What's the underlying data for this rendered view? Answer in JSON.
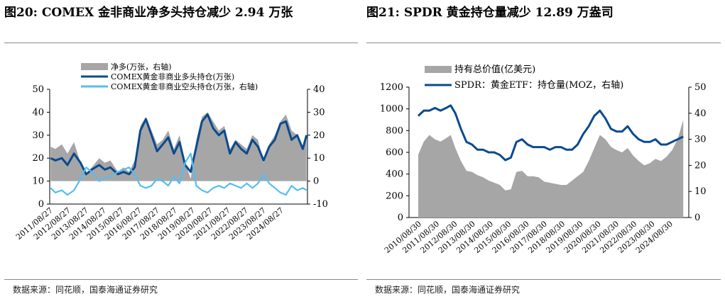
{
  "left": {
    "figure_title": "图20:  COMEX 金非商业净多头持仓减少 2.94 万张",
    "source": "数据来源：同花顺，国泰海通证券研究"
  },
  "right": {
    "figure_title": "图21:  SPDR 黄金持仓量减少 12.89 万盎司",
    "source": "数据来源：同花顺，国泰海通证券研究"
  },
  "chart_data": [
    {
      "type": "line",
      "title": "图20:  COMEX 金非商业净多头持仓减少 2.94 万张",
      "categories": [
        "2011/08/27",
        "2012/08/27",
        "2013/08/27",
        "2014/08/27",
        "2015/08/27",
        "2016/08/27",
        "2017/08/27",
        "2018/08/27",
        "2019/08/27",
        "2020/08/27",
        "2021/08/27",
        "2022/08/27",
        "2023/08/27",
        "2024/08/27"
      ],
      "ylim": [
        0,
        50
      ],
      "y2lim": [
        -10,
        40
      ],
      "yticks": [
        0,
        10,
        20,
        30,
        40,
        50
      ],
      "y2ticks": [
        -10,
        0,
        10,
        20,
        30,
        40
      ],
      "legend_position": "top",
      "x": [
        2011.4,
        2011.65,
        2012.0,
        2012.3,
        2012.65,
        2013.0,
        2013.3,
        2013.6,
        2014.0,
        2014.3,
        2014.6,
        2015.0,
        2015.3,
        2015.6,
        2015.9,
        2016.2,
        2016.5,
        2016.8,
        2017.1,
        2017.4,
        2017.7,
        2018.0,
        2018.3,
        2018.6,
        2018.9,
        2019.2,
        2019.5,
        2019.8,
        2020.1,
        2020.4,
        2020.7,
        2021.0,
        2021.3,
        2021.6,
        2021.9,
        2022.2,
        2022.5,
        2022.8,
        2023.1,
        2023.4,
        2023.7,
        2024.0,
        2024.3,
        2024.6,
        2024.9,
        2025.1
      ],
      "series": [
        {
          "name": "净多(万张，右轴)",
          "style": "area",
          "axis": "right",
          "color": "#a6a6a6",
          "values": [
            15,
            14,
            16,
            12,
            17,
            8,
            3,
            6,
            10,
            8,
            9,
            4,
            6,
            4,
            9,
            24,
            28,
            22,
            16,
            18,
            22,
            14,
            20,
            8,
            1,
            18,
            28,
            30,
            26,
            22,
            24,
            14,
            18,
            16,
            14,
            20,
            18,
            8,
            16,
            20,
            26,
            29,
            22,
            20,
            14,
            20
          ]
        },
        {
          "name": "COMEX黄金非商业多头持仓(万张)",
          "style": "line",
          "axis": "left",
          "color": "#0a4a8f",
          "values": [
            20,
            19,
            20,
            17,
            22,
            18,
            13,
            15,
            17,
            15,
            16,
            13,
            14,
            13,
            16,
            32,
            37,
            30,
            23,
            26,
            29,
            22,
            27,
            17,
            14,
            25,
            36,
            39,
            33,
            30,
            32,
            22,
            27,
            24,
            22,
            28,
            25,
            19,
            25,
            28,
            35,
            36,
            28,
            30,
            24,
            30
          ]
        },
        {
          "name": "COMEX黄金非商业空头持仓(万张，右轴)",
          "style": "line",
          "axis": "right",
          "color": "#56bdf0",
          "values": [
            -3,
            -5,
            -4,
            -6,
            -4,
            1,
            6,
            4,
            0,
            1,
            2,
            4,
            5,
            6,
            3,
            -2,
            -3,
            -2,
            1,
            0,
            -2,
            2,
            -1,
            8,
            12,
            -2,
            -4,
            -5,
            -3,
            -2,
            -3,
            -1,
            -2,
            -3,
            -1,
            -3,
            -1,
            3,
            -1,
            -3,
            -5,
            -6,
            -2,
            -4,
            -3,
            -4
          ]
        }
      ]
    },
    {
      "type": "line",
      "title": "图21:  SPDR 黄金持仓量减少 12.89 万盎司",
      "categories": [
        "2010/08/30",
        "2011/08/30",
        "2012/08/30",
        "2013/08/30",
        "2014/08/30",
        "2015/08/30",
        "2016/08/30",
        "2017/08/30",
        "2018/08/30",
        "2019/08/30",
        "2020/08/30",
        "2021/08/30",
        "2022/08/30",
        "2023/08/30",
        "2024/08/30"
      ],
      "ylim": [
        0,
        1200
      ],
      "y2lim": [
        0,
        50
      ],
      "yticks": [
        0,
        200,
        400,
        600,
        800,
        1000,
        1200
      ],
      "y2ticks": [
        0,
        10,
        20,
        30,
        40,
        50
      ],
      "legend_position": "top",
      "x": [
        2011.0,
        2011.3,
        2011.6,
        2011.9,
        2012.2,
        2012.5,
        2012.75,
        2013.0,
        2013.3,
        2013.6,
        2013.9,
        2014.2,
        2014.5,
        2014.8,
        2015.1,
        2015.4,
        2015.7,
        2016.0,
        2016.3,
        2016.6,
        2016.9,
        2017.2,
        2017.5,
        2017.8,
        2018.1,
        2018.4,
        2018.7,
        2019.0,
        2019.3,
        2019.6,
        2019.9,
        2020.2,
        2020.5,
        2020.8,
        2021.1,
        2021.4,
        2021.7,
        2022.0,
        2022.3,
        2022.6,
        2022.9,
        2023.2,
        2023.5,
        2023.8,
        2024.1,
        2024.4,
        2024.7,
        2025.0,
        2025.3
      ],
      "series": [
        {
          "name": "持有总价值(亿美元)",
          "style": "area",
          "axis": "left",
          "color": "#a6a6a6",
          "values": [
            580,
            700,
            760,
            720,
            700,
            730,
            760,
            640,
            520,
            430,
            420,
            390,
            370,
            340,
            320,
            300,
            250,
            260,
            420,
            430,
            380,
            380,
            370,
            330,
            320,
            310,
            300,
            300,
            340,
            380,
            420,
            520,
            640,
            760,
            720,
            650,
            620,
            600,
            640,
            570,
            520,
            480,
            500,
            540,
            520,
            560,
            620,
            720,
            900
          ]
        },
        {
          "name": "SPDR：黄金ETF：持仓量(MOZ，右轴)",
          "style": "line",
          "axis": "right",
          "color": "#0a4a8f",
          "values": [
            39,
            41,
            41,
            42,
            41,
            42,
            43,
            40,
            34,
            29,
            28,
            26,
            26,
            25,
            25,
            24,
            22,
            23,
            29,
            30,
            28,
            27,
            27,
            27,
            26,
            27,
            27,
            26,
            26,
            28,
            32,
            35,
            39,
            41,
            38,
            34,
            33,
            33,
            35,
            32,
            30,
            29,
            29,
            30,
            28,
            28,
            29,
            30,
            31
          ]
        }
      ]
    }
  ]
}
